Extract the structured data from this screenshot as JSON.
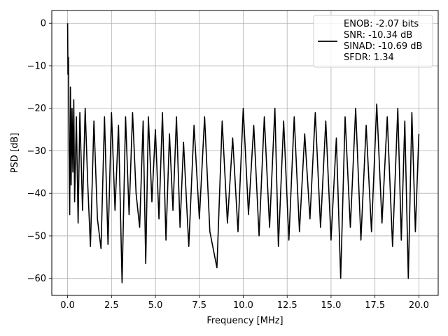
{
  "chart_data": {
    "type": "line",
    "title": "",
    "xlabel": "Frequency [MHz]",
    "ylabel": "PSD [dB]",
    "xlim": [
      -0.9,
      21.1
    ],
    "ylim": [
      -64.0,
      3.0
    ],
    "xticks": [
      0.0,
      2.5,
      5.0,
      7.5,
      10.0,
      12.5,
      15.0,
      17.5,
      20.0
    ],
    "xtick_labels": [
      "0.0",
      "2.5",
      "5.0",
      "7.5",
      "10.0",
      "12.5",
      "15.0",
      "17.5",
      "20.0"
    ],
    "yticks": [
      0,
      -10,
      -20,
      -30,
      -40,
      -50,
      -60
    ],
    "ytick_labels": [
      "0",
      "−10",
      "−20",
      "−30",
      "−40",
      "−50",
      "−60"
    ],
    "grid": true,
    "legend_position": "top-right",
    "legend": {
      "entries": [
        "ENOB: -2.07 bits",
        "SNR: -10.34 dB",
        "SINAD: -10.69 dB",
        "SFDR: 1.34"
      ]
    },
    "line_color": "#000000",
    "series": [
      {
        "x": [
          0.0,
          0.02,
          0.05,
          0.08,
          0.12,
          0.16,
          0.2,
          0.25,
          0.3,
          0.35,
          0.4,
          0.5,
          0.6,
          0.7,
          0.85,
          1.0,
          1.15,
          1.3,
          1.5,
          1.7,
          1.9,
          2.1,
          2.3,
          2.5,
          2.7,
          2.9,
          3.1,
          3.3,
          3.5,
          3.7,
          3.9,
          4.1,
          4.3,
          4.45,
          4.6,
          4.8,
          5.0,
          5.2,
          5.4,
          5.6,
          5.8,
          6.0,
          6.2,
          6.4,
          6.6,
          6.9,
          7.2,
          7.5,
          7.8,
          8.1,
          8.5,
          8.8,
          9.1,
          9.4,
          9.7,
          10.0,
          10.3,
          10.6,
          10.9,
          11.2,
          11.5,
          11.8,
          12.0,
          12.3,
          12.6,
          12.9,
          13.2,
          13.5,
          13.8,
          14.1,
          14.4,
          14.7,
          15.0,
          15.3,
          15.55,
          15.8,
          16.1,
          16.4,
          16.7,
          17.0,
          17.3,
          17.6,
          17.9,
          18.2,
          18.5,
          18.8,
          19.0,
          19.2,
          19.4,
          19.6,
          19.8,
          20.0
        ],
        "y": [
          0.0,
          -12,
          -8,
          -30,
          -45,
          -15,
          -38,
          -20,
          -35,
          -18,
          -42,
          -22,
          -47,
          -21,
          -44,
          -20,
          -38,
          -52.5,
          -23,
          -46,
          -53,
          -22,
          -52,
          -21,
          -44,
          -24,
          -61,
          -22,
          -45,
          -21,
          -40,
          -48,
          -23,
          -56.5,
          -22,
          -42,
          -25,
          -46,
          -21,
          -51,
          -26,
          -44,
          -22,
          -48,
          -28,
          -52.5,
          -24,
          -46,
          -22,
          -49,
          -57.5,
          -23,
          -47,
          -27,
          -49,
          -20,
          -45,
          -24,
          -50,
          -22,
          -48,
          -20,
          -52.5,
          -23,
          -51,
          -22,
          -49,
          -26,
          -46,
          -21,
          -48,
          -23,
          -51,
          -27,
          -60,
          -22,
          -48,
          -20,
          -51,
          -24,
          -49,
          -19,
          -47,
          -22,
          -52.5,
          -20,
          -51,
          -23,
          -60,
          -21,
          -49,
          -26
        ]
      }
    ]
  }
}
